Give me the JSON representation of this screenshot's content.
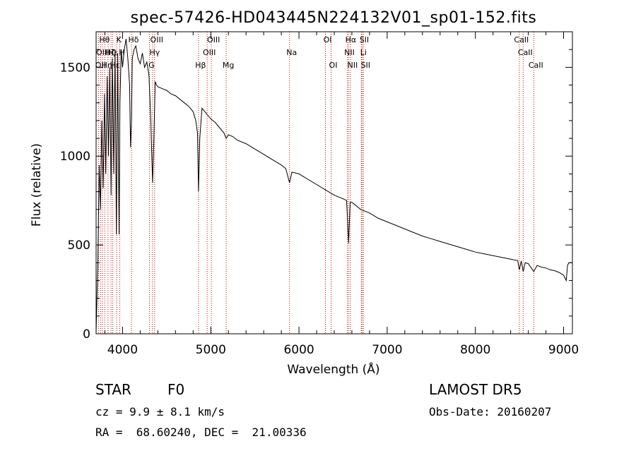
{
  "chart_data": {
    "type": "line",
    "title": "spec-57426-HD043445N224132V01_sp01-152.fits",
    "xlabel": "Wavelength (Å)",
    "ylabel": "Flux (relative)",
    "xlim": [
      3700,
      9100
    ],
    "ylim": [
      0,
      1700
    ],
    "xticks": [
      4000,
      5000,
      6000,
      7000,
      8000,
      9000
    ],
    "yticks": [
      0,
      500,
      1000,
      1500
    ],
    "grid": false,
    "series": [
      {
        "x": [
          3700,
          3720,
          3735,
          3750,
          3765,
          3780,
          3795,
          3810,
          3825,
          3840,
          3855,
          3870,
          3885,
          3900,
          3915,
          3930,
          3945,
          3960,
          3970,
          3985,
          4000,
          4020,
          4040,
          4060,
          4080,
          4090,
          4101,
          4110,
          4130,
          4150,
          4175,
          4200,
          4225,
          4250,
          4275,
          4300,
          4320,
          4340,
          4355,
          4370,
          4385,
          4400,
          4450,
          4500,
          4550,
          4600,
          4650,
          4700,
          4750,
          4800,
          4830,
          4850,
          4861,
          4875,
          4900,
          4950,
          5000,
          5050,
          5100,
          5150,
          5175,
          5200,
          5250,
          5300,
          5400,
          5500,
          5600,
          5700,
          5800,
          5850,
          5893,
          5920,
          6000,
          6100,
          6200,
          6300,
          6400,
          6500,
          6540,
          6563,
          6580,
          6600,
          6650,
          6700,
          6800,
          6900,
          7000,
          7100,
          7200,
          7300,
          7400,
          7500,
          7600,
          7700,
          7800,
          7900,
          8000,
          8100,
          8200,
          8300,
          8400,
          8480,
          8498,
          8520,
          8542,
          8565,
          8600,
          8662,
          8700,
          8750,
          8800,
          8850,
          8900,
          8950,
          9000,
          9030,
          9045,
          9060,
          9100
        ],
        "y": [
          10,
          400,
          950,
          700,
          1200,
          820,
          1350,
          900,
          1450,
          1000,
          1500,
          780,
          1550,
          900,
          1600,
          560,
          1580,
          560,
          1300,
          1600,
          1500,
          1600,
          1660,
          1550,
          1400,
          1050,
          1200,
          1550,
          1600,
          1620,
          1550,
          1520,
          1580,
          1500,
          1530,
          1450,
          1200,
          850,
          1100,
          1420,
          1400,
          1390,
          1380,
          1370,
          1350,
          1340,
          1320,
          1300,
          1280,
          1250,
          1200,
          1130,
          800,
          1100,
          1270,
          1240,
          1210,
          1190,
          1160,
          1130,
          1100,
          1120,
          1110,
          1090,
          1070,
          1040,
          1010,
          980,
          950,
          930,
          850,
          910,
          900,
          870,
          840,
          810,
          780,
          760,
          750,
          510,
          740,
          740,
          720,
          700,
          680,
          650,
          630,
          610,
          590,
          570,
          550,
          535,
          520,
          505,
          490,
          475,
          460,
          450,
          440,
          430,
          420,
          412,
          360,
          410,
          350,
          400,
          395,
          350,
          385,
          375,
          370,
          360,
          355,
          345,
          330,
          300,
          385,
          400,
          400
        ]
      }
    ],
    "line_markers": [
      {
        "x": 3727,
        "label": "OII",
        "row": 2
      },
      {
        "x": 3750,
        "label": "OIII",
        "row": 1
      },
      {
        "x": 3771,
        "label": "Hθ",
        "row": 0
      },
      {
        "x": 3798,
        "label": "Hη",
        "row": 2
      },
      {
        "x": 3835,
        "label": "Hζ",
        "row": 1
      },
      {
        "x": 3869,
        "label": "Hε",
        "row": 1
      },
      {
        "x": 3889,
        "label": "Hε",
        "row": 2
      },
      {
        "x": 3934,
        "label": "K",
        "row": 0
      },
      {
        "x": 3968,
        "label": "H",
        "row": 1
      },
      {
        "x": 4101,
        "label": "Hδ",
        "row": 0
      },
      {
        "x": 4304,
        "label": "G",
        "row": 2
      },
      {
        "x": 4340,
        "label": "Hγ",
        "row": 1
      },
      {
        "x": 4363,
        "label": "OIII",
        "row": 0
      },
      {
        "x": 4861,
        "label": "Hβ",
        "row": 2
      },
      {
        "x": 4959,
        "label": "OIII",
        "row": 1
      },
      {
        "x": 5007,
        "label": "OIII",
        "row": 0
      },
      {
        "x": 5175,
        "label": "Mg",
        "row": 2
      },
      {
        "x": 5893,
        "label": "Na",
        "row": 1
      },
      {
        "x": 6300,
        "label": "OI",
        "row": 0
      },
      {
        "x": 6364,
        "label": "OI",
        "row": 2
      },
      {
        "x": 6548,
        "label": "NII",
        "row": 1
      },
      {
        "x": 6563,
        "label": "Hα",
        "row": 0
      },
      {
        "x": 6583,
        "label": "NII",
        "row": 2
      },
      {
        "x": 6707,
        "label": "Li",
        "row": 1
      },
      {
        "x": 6716,
        "label": "SII",
        "row": 0
      },
      {
        "x": 6731,
        "label": "SII",
        "row": 2
      },
      {
        "x": 8498,
        "label": "CaII",
        "row": 0
      },
      {
        "x": 8542,
        "label": "CaII",
        "row": 1
      },
      {
        "x": 8662,
        "label": "CaII",
        "row": 2
      }
    ]
  },
  "info": {
    "object_class": "STAR",
    "subclass": "F0",
    "survey": "LAMOST DR5",
    "cz": "cz = 9.9 ± 8.1 km/s",
    "obs_date": "Obs-Date: 20160207",
    "coords": "RA =  68.60240, DEC =  21.00336"
  },
  "colors": {
    "spectrum": "#000000",
    "marker": "#cc0000",
    "axes": "#000000"
  }
}
